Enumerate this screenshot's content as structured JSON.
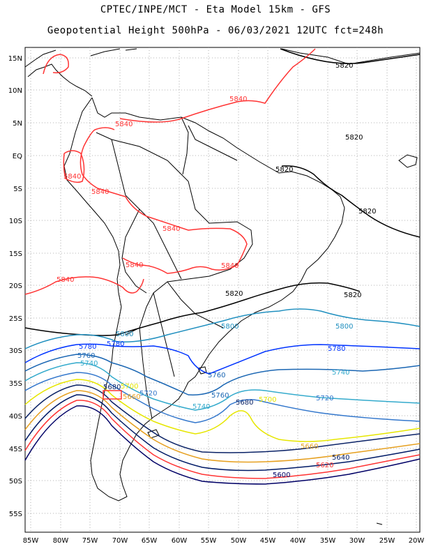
{
  "title_line1": "CPTEC/INPE/MCT -  Eta Model 15km - GFS",
  "title_line2": "Geopotential Height 500hPa - 06/03/2021 12UTC fct=248h",
  "lat_labels": [
    "15N",
    "10N",
    "5N",
    "EQ",
    "5S",
    "10S",
    "15S",
    "20S",
    "25S",
    "30S",
    "35S",
    "40S",
    "45S",
    "50S",
    "55S"
  ],
  "lon_labels": [
    "85W",
    "80W",
    "75W",
    "70W",
    "65W",
    "60W",
    "55W",
    "50W",
    "45W",
    "40W",
    "35W",
    "30W",
    "25W",
    "20W"
  ],
  "contour_labels": [
    {
      "text": "5820",
      "color": "#000000"
    },
    {
      "text": "5840",
      "color": "#ff3333"
    },
    {
      "text": "5840",
      "color": "#ff3333"
    },
    {
      "text": "5840",
      "color": "#ff3333"
    },
    {
      "text": "5840",
      "color": "#ff3333"
    },
    {
      "text": "5840",
      "color": "#ff3333"
    },
    {
      "text": "5840",
      "color": "#ff3333"
    },
    {
      "text": "5840",
      "color": "#ff3333"
    },
    {
      "text": "5840",
      "color": "#ff3333"
    },
    {
      "text": "5820",
      "color": "#000000"
    },
    {
      "text": "5820",
      "color": "#000000"
    },
    {
      "text": "5820",
      "color": "#000000"
    },
    {
      "text": "5820",
      "color": "#000000"
    },
    {
      "text": "5820",
      "color": "#000000"
    },
    {
      "text": "5800",
      "color": "#1f8fbf"
    },
    {
      "text": "5800",
      "color": "#1f8fbf"
    },
    {
      "text": "5800",
      "color": "#1f8fbf"
    },
    {
      "text": "5780",
      "color": "#0033ff"
    },
    {
      "text": "5780",
      "color": "#0033ff"
    },
    {
      "text": "5780",
      "color": "#0033ff"
    },
    {
      "text": "5760",
      "color": "#1a66b3"
    },
    {
      "text": "5760",
      "color": "#1a66b3"
    },
    {
      "text": "5760",
      "color": "#1a66b3"
    },
    {
      "text": "5740",
      "color": "#33aacc"
    },
    {
      "text": "5740",
      "color": "#33aacc"
    },
    {
      "text": "5740",
      "color": "#33aacc"
    },
    {
      "text": "5720",
      "color": "#3377cc"
    },
    {
      "text": "5720",
      "color": "#3377cc"
    },
    {
      "text": "5700",
      "color": "#e6e600"
    },
    {
      "text": "5700",
      "color": "#e6e600"
    },
    {
      "text": "5680",
      "color": "#0a2266"
    },
    {
      "text": "5680",
      "color": "#0a2266"
    },
    {
      "text": "5660",
      "color": "#e6a020"
    },
    {
      "text": "5660",
      "color": "#e6a020"
    },
    {
      "text": "5640",
      "color": "#001a66"
    },
    {
      "text": "5620",
      "color": "#ff3333"
    },
    {
      "text": "5600",
      "color": "#000066"
    }
  ],
  "colors": {
    "c5840": "#ff3333",
    "c5820": "#000000",
    "c5800": "#1f8fbf",
    "c5780": "#0033ff",
    "c5760": "#1a66b3",
    "c5740": "#33aacc",
    "c5720": "#3377cc",
    "c5700": "#e6e600",
    "c5680": "#0a2266",
    "c5660": "#e6a020",
    "c5640": "#001a66",
    "c5620": "#ff3333",
    "c5600": "#000066"
  }
}
